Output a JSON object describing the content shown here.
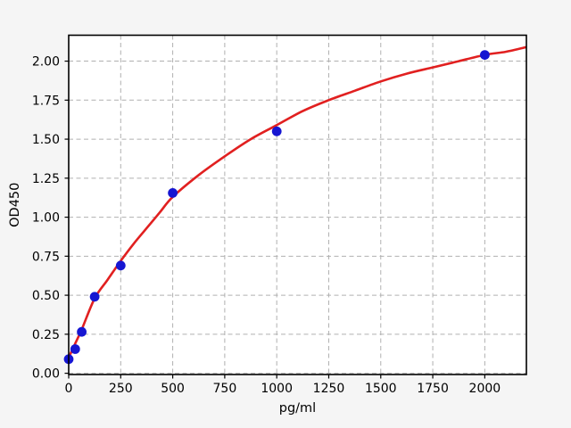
{
  "chart_data": {
    "type": "scatter",
    "title": "",
    "xlabel": "pg/ml",
    "ylabel": "OD450",
    "xlim": [
      0,
      2200
    ],
    "ylim": [
      -0.008,
      2.166
    ],
    "grid": true,
    "legend": null,
    "x_ticks": {
      "values": [
        0,
        250,
        500,
        750,
        1000,
        1250,
        1500,
        1750,
        2000
      ],
      "labels": [
        "0",
        "250",
        "500",
        "750",
        "1000",
        "1250",
        "1500",
        "1750",
        "2000"
      ]
    },
    "y_ticks": {
      "values": [
        0.0,
        0.25,
        0.5,
        0.75,
        1.0,
        1.25,
        1.5,
        1.75,
        2.0
      ],
      "labels": [
        "0.00",
        "0.25",
        "0.50",
        "0.75",
        "1.00",
        "1.25",
        "1.50",
        "1.75",
        "2.00"
      ]
    },
    "series": [
      {
        "name": "standard-points",
        "kind": "scatter",
        "marker": "circle",
        "marker_radius": 5.4,
        "color": "#1616d2",
        "x": [
          0,
          31.25,
          62.5,
          125,
          250,
          500,
          1000,
          2000
        ],
        "y": [
          0.09,
          0.155,
          0.265,
          0.49,
          0.69,
          1.155,
          1.55,
          2.04
        ]
      },
      {
        "name": "fit-curve",
        "kind": "line",
        "line_width": 2.6,
        "color": "#e12020",
        "x": [
          0,
          31.25,
          62.5,
          125,
          187.5,
          250,
          312.5,
          375,
          437.5,
          500,
          625,
          750,
          875,
          1000,
          1125,
          1250,
          1375,
          1500,
          1625,
          1750,
          1875,
          2000,
          2100,
          2200
        ],
        "y": [
          0.1,
          0.19,
          0.28,
          0.48,
          0.6,
          0.72,
          0.83,
          0.93,
          1.03,
          1.13,
          1.27,
          1.39,
          1.5,
          1.59,
          1.68,
          1.75,
          1.81,
          1.87,
          1.92,
          1.96,
          2.0,
          2.04,
          2.06,
          2.09
        ]
      }
    ],
    "colors": {
      "figure_background": "#f5f5f5",
      "axes_background": "#ffffff",
      "grid": "#b0b0b0",
      "spine": "#000000",
      "tick": "#000000",
      "point": "#1616d2",
      "curve": "#e12020"
    }
  }
}
